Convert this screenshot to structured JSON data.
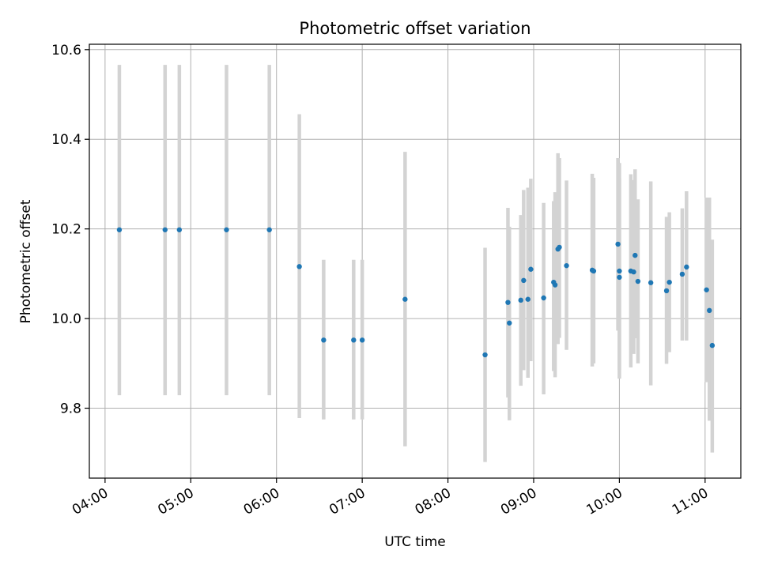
{
  "chart_data": {
    "type": "scatter",
    "title": "Photometric offset variation",
    "xlabel": "UTC time",
    "ylabel": "Photometric offset",
    "grid": true,
    "x_tick_labels": [
      "04:00",
      "05:00",
      "06:00",
      "07:00",
      "08:00",
      "09:00",
      "10:00",
      "11:00"
    ],
    "y_tick_labels": [
      "9.8",
      "10.0",
      "10.2",
      "10.4",
      "10.6"
    ],
    "xlim": [
      "03:49",
      "11:25"
    ],
    "ylim": [
      9.644,
      10.612
    ],
    "colors": {
      "point": "#1f77b4",
      "errorbar": "#d3d3d3",
      "grid": "#b0b0b0"
    },
    "series": [
      {
        "points": [
          {
            "x": "04:10",
            "y": 10.198,
            "low": 9.829,
            "high": 10.566
          },
          {
            "x": "04:42",
            "y": 10.198,
            "low": 9.829,
            "high": 10.566
          },
          {
            "x": "04:52",
            "y": 10.198,
            "low": 9.829,
            "high": 10.566
          },
          {
            "x": "05:25",
            "y": 10.198,
            "low": 9.829,
            "high": 10.566
          },
          {
            "x": "05:55",
            "y": 10.198,
            "low": 9.829,
            "high": 10.566
          },
          {
            "x": "06:16",
            "y": 10.116,
            "low": 9.778,
            "high": 10.456
          },
          {
            "x": "06:33",
            "y": 9.952,
            "low": 9.775,
            "high": 10.131
          },
          {
            "x": "06:54",
            "y": 9.952,
            "low": 9.775,
            "high": 10.131
          },
          {
            "x": "07:00",
            "y": 9.952,
            "low": 9.775,
            "high": 10.131
          },
          {
            "x": "07:30",
            "y": 10.043,
            "low": 9.715,
            "high": 10.372
          },
          {
            "x": "08:26",
            "y": 9.919,
            "low": 9.68,
            "high": 10.158
          },
          {
            "x": "08:42",
            "y": 10.036,
            "low": 9.824,
            "high": 10.247
          },
          {
            "x": "08:43",
            "y": 9.99,
            "low": 9.773,
            "high": 10.205
          },
          {
            "x": "08:51",
            "y": 10.041,
            "low": 9.85,
            "high": 10.231
          },
          {
            "x": "08:53",
            "y": 10.085,
            "low": 9.885,
            "high": 10.287
          },
          {
            "x": "08:56",
            "y": 10.043,
            "low": 9.868,
            "high": 10.292
          },
          {
            "x": "08:58",
            "y": 10.11,
            "low": 9.905,
            "high": 10.312
          },
          {
            "x": "09:07",
            "y": 10.046,
            "low": 9.831,
            "high": 10.258
          },
          {
            "x": "09:14",
            "y": 10.081,
            "low": 9.883,
            "high": 10.262
          },
          {
            "x": "09:15",
            "y": 10.075,
            "low": 9.869,
            "high": 10.282
          },
          {
            "x": "09:17",
            "y": 10.155,
            "low": 9.943,
            "high": 10.369
          },
          {
            "x": "09:18",
            "y": 10.159,
            "low": 9.957,
            "high": 10.358
          },
          {
            "x": "09:23",
            "y": 10.118,
            "low": 9.93,
            "high": 10.308
          },
          {
            "x": "09:41",
            "y": 10.108,
            "low": 9.893,
            "high": 10.323
          },
          {
            "x": "09:42",
            "y": 10.106,
            "low": 9.9,
            "high": 10.314
          },
          {
            "x": "09:59",
            "y": 10.166,
            "low": 9.973,
            "high": 10.358
          },
          {
            "x": "10:00",
            "y": 10.092,
            "low": 9.866,
            "high": 10.313
          },
          {
            "x": "10:00",
            "y": 10.106,
            "low": 9.885,
            "high": 10.347
          },
          {
            "x": "10:08",
            "y": 10.106,
            "low": 9.891,
            "high": 10.322
          },
          {
            "x": "10:10",
            "y": 10.104,
            "low": 9.921,
            "high": 10.309
          },
          {
            "x": "10:11",
            "y": 10.141,
            "low": 9.956,
            "high": 10.333
          },
          {
            "x": "10:13",
            "y": 10.083,
            "low": 9.9,
            "high": 10.266
          },
          {
            "x": "10:22",
            "y": 10.08,
            "low": 9.851,
            "high": 10.306
          },
          {
            "x": "10:33",
            "y": 10.062,
            "low": 9.899,
            "high": 10.227
          },
          {
            "x": "10:35",
            "y": 10.081,
            "low": 9.925,
            "high": 10.237
          },
          {
            "x": "10:44",
            "y": 10.099,
            "low": 9.951,
            "high": 10.246
          },
          {
            "x": "10:47",
            "y": 10.115,
            "low": 9.951,
            "high": 10.284
          },
          {
            "x": "11:01",
            "y": 10.064,
            "low": 9.858,
            "high": 10.27
          },
          {
            "x": "11:03",
            "y": 10.018,
            "low": 9.772,
            "high": 10.27
          },
          {
            "x": "11:05",
            "y": 9.94,
            "low": 9.701,
            "high": 10.176
          }
        ]
      }
    ]
  }
}
